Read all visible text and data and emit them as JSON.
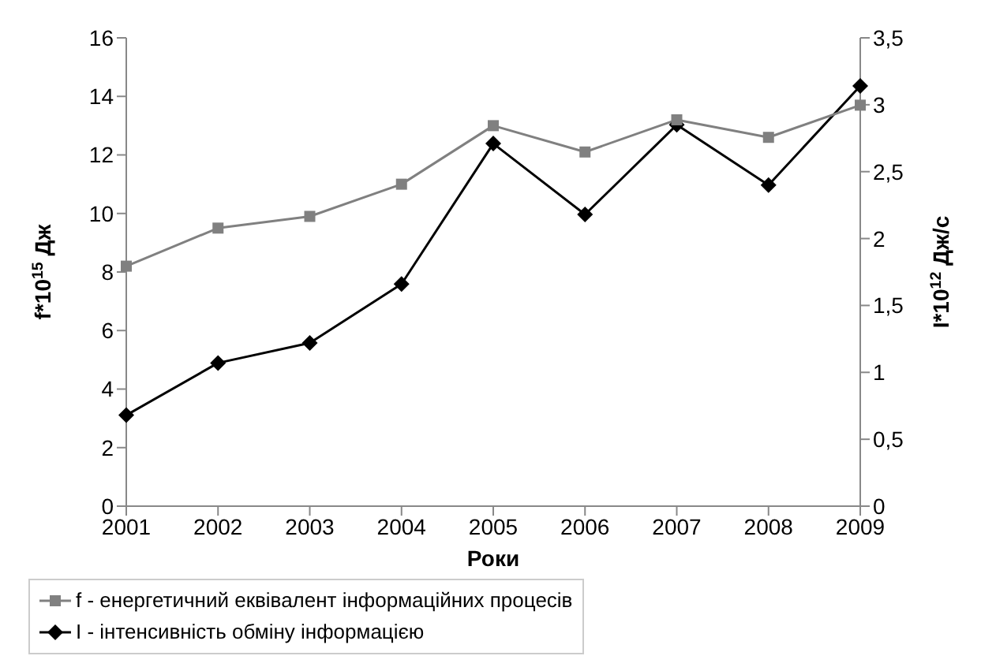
{
  "chart_data": {
    "type": "line",
    "xlabel": "Роки",
    "ylabel": "f*10$^{15}$ Дж",
    "y2label": "I*10$^{12}$ Дж/с",
    "categories": [
      "2001",
      "2002",
      "2003",
      "2004",
      "2005",
      "2006",
      "2007",
      "2008",
      "2009"
    ],
    "series": [
      {
        "name": "f - енергетичний еквівалент інформаційних процесів",
        "color": "#808080",
        "marker": "square",
        "values": [
          8.2,
          9.5,
          9.9,
          11.0,
          13.0,
          12.1,
          13.2,
          12.6,
          13.7
        ]
      },
      {
        "name": "I - інтенсивність обміну інформацією",
        "color": "#000000",
        "marker": "diamond",
        "axis": "y2",
        "values": [
          0.68,
          1.07,
          1.22,
          1.66,
          2.71,
          2.18,
          2.85,
          2.4,
          3.14
        ]
      }
    ],
    "ylim": [
      0,
      16
    ],
    "yticks": [
      0,
      2,
      4,
      6,
      8,
      10,
      12,
      14,
      16
    ],
    "y2lim": [
      0,
      3.5
    ],
    "y2ticks": [
      0,
      {
        "value": 0.5,
        "label": "0,5"
      },
      1,
      {
        "value": 1.5,
        "label": "1,5"
      },
      2,
      {
        "value": 2.5,
        "label": "2,5"
      },
      3,
      {
        "value": 3.5,
        "label": "3,5"
      }
    ],
    "grid": false,
    "legend": "bottom"
  }
}
